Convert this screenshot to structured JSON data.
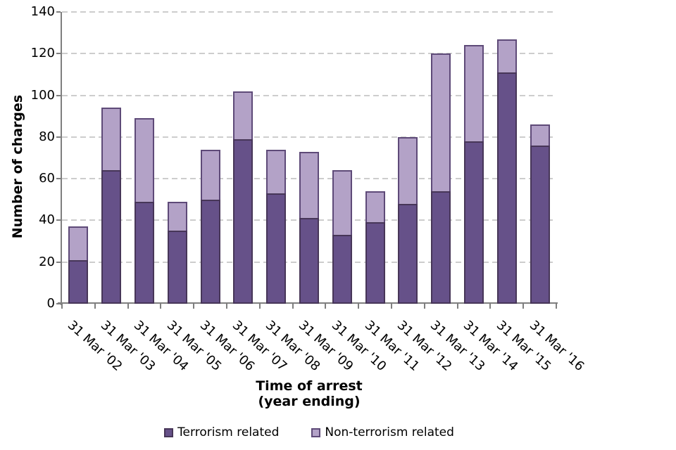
{
  "chart_data": {
    "type": "bar",
    "subtype": "stacked-column",
    "title": "",
    "categories": [
      "31 Mar '02",
      "31 Mar '03",
      "31 Mar '04",
      "31 Mar '05",
      "31 Mar '06",
      "31 Mar '07",
      "31 Mar '08",
      "31 Mar '09",
      "31 Mar '10",
      "31 Mar '11",
      "31 Mar '12",
      "31 Mar '13",
      "31 Mar '14",
      "31 Mar '15",
      "31 Mar '16"
    ],
    "series": [
      {
        "name": "Terrorism related",
        "color": "#665189",
        "border_color": "#473658",
        "values": [
          21,
          64,
          49,
          35,
          50,
          79,
          53,
          41,
          33,
          39,
          48,
          54,
          78,
          111,
          76
        ]
      },
      {
        "name": "Non-terrorism related",
        "color": "#b3a2c7",
        "border_color": "#5e4a78",
        "values": [
          16,
          30,
          40,
          14,
          24,
          23,
          21,
          32,
          31,
          15,
          32,
          66,
          46,
          16,
          10
        ]
      }
    ],
    "stacked_totals": [
      37,
      94,
      89,
      49,
      74,
      102,
      74,
      73,
      64,
      54,
      80,
      120,
      124,
      127,
      86
    ],
    "ylabel": "Number of charges",
    "xlabel_line1": "Time of arrest",
    "xlabel_line2": "(year ending)",
    "ylim": [
      0,
      140
    ],
    "ytick_step": 20,
    "yticks": [
      "0",
      "20",
      "40",
      "60",
      "80",
      "100",
      "120",
      "140"
    ],
    "grid": "horizontal-dashed",
    "gridline_color": "#cdcdcd",
    "axis_color": "#7f7f7f",
    "legend_position": "bottom",
    "legend": [
      "Terrorism related",
      "Non-terrorism related"
    ]
  }
}
